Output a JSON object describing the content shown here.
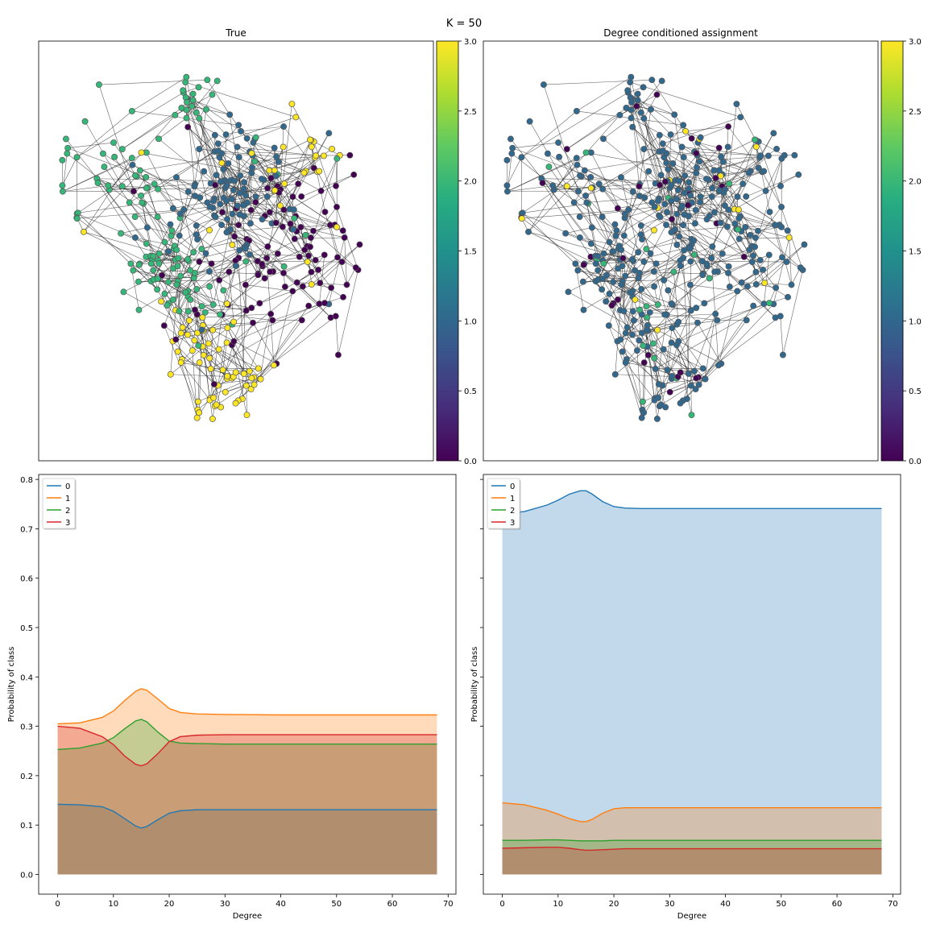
{
  "suptitle": "K = 50",
  "graph_panels": [
    {
      "title": "True"
    },
    {
      "title": "Degree conditioned assignment"
    }
  ],
  "colorbar": {
    "ticks": [
      "0.0",
      "0.5",
      "1.0",
      "1.5",
      "2.0",
      "2.5",
      "3.0"
    ],
    "colormap": "viridis",
    "range": [
      0,
      3
    ]
  },
  "class_colors": {
    "0": "#440154",
    "1": "#31688e",
    "2": "#35b779",
    "3": "#fde725"
  },
  "series_colors": [
    "#1f77b4",
    "#ff7f0e",
    "#2ca02c",
    "#d62728"
  ],
  "chart_data": [
    {
      "type": "area",
      "title": "",
      "xlabel": "Degree",
      "ylabel": "Probability of class",
      "xlim": [
        -3.4,
        71.4
      ],
      "ylim": [
        -0.04,
        0.81
      ],
      "xticks": [
        "0",
        "10",
        "20",
        "30",
        "40",
        "50",
        "60",
        "70"
      ],
      "yticks": [
        "0.0",
        "0.1",
        "0.2",
        "0.3",
        "0.4",
        "0.5",
        "0.6",
        "0.7",
        "0.8"
      ],
      "legend": {
        "position": "top-left",
        "entries": [
          "0",
          "1",
          "2",
          "3"
        ]
      },
      "x": [
        0,
        4,
        8,
        10,
        12,
        14,
        15,
        16,
        18,
        20,
        22,
        25,
        30,
        40,
        50,
        60,
        68
      ],
      "series": [
        {
          "name": "0",
          "values": [
            0.142,
            0.141,
            0.137,
            0.128,
            0.113,
            0.098,
            0.094,
            0.097,
            0.111,
            0.124,
            0.129,
            0.131,
            0.131,
            0.131,
            0.131,
            0.131,
            0.131
          ]
        },
        {
          "name": "1",
          "values": [
            0.305,
            0.307,
            0.318,
            0.331,
            0.352,
            0.371,
            0.376,
            0.373,
            0.355,
            0.336,
            0.328,
            0.325,
            0.324,
            0.323,
            0.323,
            0.323,
            0.323
          ]
        },
        {
          "name": "2",
          "values": [
            0.253,
            0.256,
            0.266,
            0.277,
            0.295,
            0.311,
            0.314,
            0.309,
            0.288,
            0.27,
            0.266,
            0.265,
            0.264,
            0.264,
            0.264,
            0.264,
            0.264
          ]
        },
        {
          "name": "3",
          "values": [
            0.3,
            0.296,
            0.279,
            0.263,
            0.24,
            0.223,
            0.22,
            0.224,
            0.245,
            0.269,
            0.279,
            0.282,
            0.283,
            0.283,
            0.283,
            0.283,
            0.283
          ]
        }
      ]
    },
    {
      "type": "area",
      "title": "",
      "xlabel": "Degree",
      "ylabel": "Probability of class",
      "xlim": [
        -3.4,
        71.4
      ],
      "ylim": [
        -0.04,
        0.81
      ],
      "xticks": [
        "0",
        "10",
        "20",
        "30",
        "40",
        "50",
        "60",
        "70"
      ],
      "yticks": [],
      "legend": {
        "position": "top-left",
        "entries": [
          "0",
          "1",
          "2",
          "3"
        ]
      },
      "x": [
        0,
        4,
        8,
        10,
        12,
        14,
        15,
        16,
        18,
        20,
        22,
        25,
        30,
        40,
        50,
        60,
        68
      ],
      "series": [
        {
          "name": "0",
          "values": [
            0.73,
            0.735,
            0.748,
            0.758,
            0.77,
            0.777,
            0.777,
            0.771,
            0.755,
            0.745,
            0.742,
            0.741,
            0.741,
            0.741,
            0.741,
            0.741,
            0.741
          ]
        },
        {
          "name": "1",
          "values": [
            0.145,
            0.141,
            0.13,
            0.122,
            0.113,
            0.107,
            0.107,
            0.111,
            0.124,
            0.133,
            0.135,
            0.135,
            0.135,
            0.135,
            0.135,
            0.135,
            0.135
          ]
        },
        {
          "name": "2",
          "values": [
            0.069,
            0.069,
            0.07,
            0.07,
            0.069,
            0.068,
            0.068,
            0.068,
            0.068,
            0.069,
            0.069,
            0.069,
            0.069,
            0.069,
            0.069,
            0.069,
            0.069
          ]
        },
        {
          "name": "3",
          "values": [
            0.053,
            0.054,
            0.055,
            0.055,
            0.053,
            0.05,
            0.049,
            0.049,
            0.05,
            0.051,
            0.052,
            0.052,
            0.052,
            0.052,
            0.052,
            0.052,
            0.052
          ]
        }
      ]
    }
  ]
}
